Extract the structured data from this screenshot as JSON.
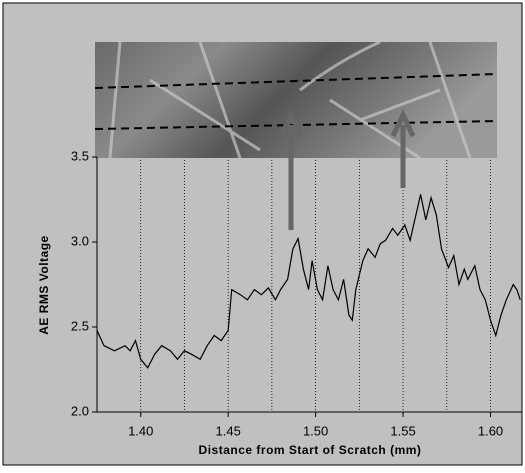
{
  "chart_data": {
    "type": "line",
    "x_label": "Distance from Start of Scratch (mm)",
    "y_label": "AE RMS Voltage",
    "color": "#000000",
    "grid": true,
    "xlim": [
      1.375,
      1.618
    ],
    "ylim": [
      2.0,
      3.5
    ],
    "xticks": [
      {
        "value": 1.4,
        "label": "1.40"
      },
      1.45,
      {
        "value": 1.5,
        "label": "1.50"
      },
      1.55,
      {
        "value": 1.6,
        "label": "1.60"
      }
    ],
    "xgrid": [
      1.4,
      1.425,
      1.45,
      1.475,
      1.5,
      1.525,
      1.55,
      1.575,
      1.6
    ],
    "yticks": [
      {
        "value": 2.0,
        "label": "2.0"
      },
      2.5,
      {
        "value": 3.0,
        "label": "3.0"
      },
      {
        "value": 3.5,
        "label": "3.5"
      }
    ],
    "x": [
      1.375,
      1.379,
      1.385,
      1.391,
      1.394,
      1.397,
      1.4,
      1.404,
      1.408,
      1.412,
      1.417,
      1.421,
      1.425,
      1.429,
      1.434,
      1.438,
      1.442,
      1.446,
      1.45,
      1.452,
      1.457,
      1.461,
      1.465,
      1.469,
      1.473,
      1.477,
      1.48,
      1.484,
      1.487,
      1.49,
      1.493,
      1.496,
      1.498,
      1.501,
      1.504,
      1.507,
      1.51,
      1.513,
      1.516,
      1.519,
      1.521,
      1.523,
      1.527,
      1.53,
      1.534,
      1.537,
      1.54,
      1.544,
      1.547,
      1.551,
      1.554,
      1.558,
      1.56,
      1.563,
      1.566,
      1.569,
      1.572,
      1.576,
      1.579,
      1.582,
      1.585,
      1.587,
      1.591,
      1.594,
      1.597,
      1.6,
      1.603,
      1.606,
      1.609,
      1.613,
      1.615,
      1.617
    ],
    "values": [
      2.48,
      2.39,
      2.36,
      2.39,
      2.36,
      2.42,
      2.31,
      2.26,
      2.34,
      2.39,
      2.36,
      2.31,
      2.36,
      2.34,
      2.31,
      2.39,
      2.45,
      2.42,
      2.48,
      2.72,
      2.69,
      2.66,
      2.72,
      2.69,
      2.73,
      2.66,
      2.72,
      2.78,
      2.96,
      3.02,
      2.84,
      2.72,
      2.89,
      2.72,
      2.66,
      2.86,
      2.72,
      2.66,
      2.78,
      2.57,
      2.54,
      2.72,
      2.89,
      2.96,
      2.91,
      2.99,
      3.01,
      3.08,
      3.04,
      3.1,
      3.01,
      3.19,
      3.28,
      3.13,
      3.26,
      3.16,
      2.96,
      2.85,
      2.92,
      2.75,
      2.84,
      2.78,
      2.86,
      2.72,
      2.66,
      2.54,
      2.45,
      2.57,
      2.66,
      2.75,
      2.72,
      2.66
    ]
  }
}
